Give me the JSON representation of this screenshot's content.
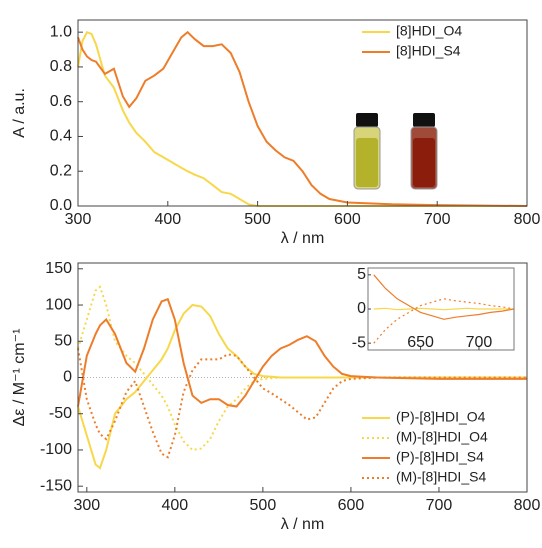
{
  "chart_data": [
    {
      "type": "line",
      "xlabel": "λ / nm",
      "ylabel": "A / a.u.",
      "legend": "upper right",
      "xlim": [
        300,
        800
      ],
      "ylim": [
        0,
        1.07
      ],
      "xticks": [
        300,
        400,
        500,
        600,
        700,
        800
      ],
      "yticks": [
        {
          "value": 0,
          "label": "0.0"
        },
        {
          "value": 0.2,
          "label": "0.2"
        },
        {
          "value": 0.4,
          "label": "0.4"
        },
        {
          "value": 0.6,
          "label": "0.6"
        },
        {
          "value": 0.8,
          "label": "0.8"
        },
        {
          "value": 1.0,
          "label": "1.0"
        }
      ],
      "x": [
        300,
        305,
        310,
        315,
        320,
        330,
        340,
        350,
        357,
        365,
        375,
        385,
        395,
        405,
        415,
        422,
        430,
        440,
        450,
        460,
        470,
        480,
        490,
        500,
        510,
        520,
        530,
        540,
        550,
        560,
        570,
        580,
        600,
        650,
        700,
        800
      ],
      "series": [
        {
          "name": "[8]HDI_O4",
          "color": "#f7d84a",
          "linestyle": "solid",
          "values": [
            0.8,
            0.95,
            1.0,
            0.99,
            0.93,
            0.75,
            0.68,
            0.55,
            0.48,
            0.42,
            0.37,
            0.31,
            0.28,
            0.25,
            0.22,
            0.2,
            0.18,
            0.16,
            0.12,
            0.08,
            0.07,
            0.04,
            0.01,
            0,
            0,
            0,
            0,
            0,
            0,
            0,
            0,
            0,
            0,
            0,
            0,
            0
          ]
        },
        {
          "name": "[8]HDI_S4",
          "color": "#ee7d2a",
          "linestyle": "solid",
          "values": [
            0.97,
            0.9,
            0.86,
            0.84,
            0.83,
            0.76,
            0.79,
            0.63,
            0.57,
            0.62,
            0.72,
            0.75,
            0.79,
            0.88,
            0.97,
            1.0,
            0.96,
            0.92,
            0.92,
            0.93,
            0.88,
            0.77,
            0.6,
            0.46,
            0.37,
            0.32,
            0.28,
            0.26,
            0.2,
            0.12,
            0.07,
            0.04,
            0.02,
            0.01,
            0.005,
            0
          ]
        }
      ]
    },
    {
      "type": "line",
      "xlabel": "λ / nm",
      "ylabel": "Δε / M⁻¹ cm⁻¹",
      "legend": "lower right",
      "zero_line": true,
      "xlim": [
        290,
        800
      ],
      "ylim": [
        -158,
        158
      ],
      "xticks": [
        300,
        400,
        500,
        600,
        700,
        800
      ],
      "yticks": [
        150,
        100,
        50,
        0,
        -50,
        -100,
        -150
      ],
      "x": [
        290,
        300,
        310,
        315,
        322,
        332,
        345,
        355,
        365,
        375,
        385,
        392,
        400,
        410,
        420,
        430,
        440,
        450,
        460,
        470,
        480,
        490,
        500,
        510,
        520,
        530,
        540,
        550,
        560,
        570,
        580,
        590,
        600,
        630,
        700,
        800
      ],
      "series": [
        {
          "name": "(P)-[8]HDI_O4",
          "color": "#f7d84a",
          "linestyle": "solid",
          "values": [
            -40,
            -80,
            -120,
            -125,
            -100,
            -50,
            -30,
            -20,
            -5,
            10,
            25,
            40,
            65,
            88,
            100,
            98,
            85,
            60,
            40,
            30,
            15,
            5,
            2,
            1,
            0,
            0,
            0,
            0,
            0,
            0,
            0,
            0,
            0,
            0,
            0,
            0
          ]
        },
        {
          "name": "(M)-[8]HDI_O4",
          "color": "#f7d84a",
          "linestyle": "dotted",
          "values": [
            40,
            80,
            120,
            125,
            100,
            50,
            30,
            20,
            5,
            -10,
            -25,
            -40,
            -65,
            -88,
            -100,
            -98,
            -85,
            -60,
            -40,
            -30,
            -15,
            -5,
            -2,
            -1,
            0,
            0,
            0,
            0,
            0,
            0,
            0,
            0,
            0,
            0,
            0,
            0
          ]
        },
        {
          "name": "(P)-[8]HDI_S4",
          "color": "#ee7d2a",
          "linestyle": "solid",
          "values": [
            -40,
            30,
            60,
            72,
            80,
            60,
            20,
            8,
            40,
            80,
            105,
            108,
            80,
            20,
            -25,
            -35,
            -30,
            -30,
            -38,
            -40,
            -25,
            -5,
            15,
            30,
            40,
            45,
            52,
            57,
            50,
            30,
            15,
            5,
            2,
            0,
            -2,
            -2
          ]
        },
        {
          "name": "(M)-[8]HDI_S4",
          "color": "#ee7d2a",
          "linestyle": "dotted",
          "values": [
            40,
            -30,
            -65,
            -78,
            -85,
            -60,
            -20,
            -5,
            -40,
            -75,
            -105,
            -110,
            -80,
            -20,
            10,
            25,
            25,
            25,
            32,
            30,
            15,
            0,
            -15,
            -22,
            -30,
            -38,
            -48,
            -58,
            -55,
            -35,
            -15,
            -5,
            -2,
            0,
            0,
            0
          ]
        }
      ]
    },
    {
      "type": "line",
      "zero_line": false,
      "xlim": [
        605,
        730
      ],
      "ylim": [
        -6,
        6
      ],
      "xticks": [
        650,
        700
      ],
      "yticks": [
        5,
        0,
        -5
      ],
      "x": [
        610,
        620,
        630,
        640,
        650,
        660,
        670,
        680,
        690,
        700,
        710,
        720,
        730
      ],
      "series": [
        {
          "color": "#f7d84a",
          "linestyle": "solid",
          "values": [
            0,
            0.1,
            -0.1,
            0,
            0.1,
            0,
            -0.1,
            0,
            0.1,
            0,
            0,
            0,
            0
          ]
        },
        {
          "color": "#ee7d2a",
          "linestyle": "solid",
          "values": [
            5,
            3,
            1.5,
            0.5,
            -0.5,
            -1,
            -1.5,
            -1.2,
            -1,
            -0.8,
            -0.5,
            -0.3,
            0
          ]
        },
        {
          "color": "#ee7d2a",
          "linestyle": "dotted",
          "values": [
            -5,
            -3,
            -1.5,
            -0.5,
            0.5,
            1,
            1.5,
            1.2,
            1,
            0.8,
            0.5,
            0.3,
            0
          ]
        }
      ]
    }
  ]
}
